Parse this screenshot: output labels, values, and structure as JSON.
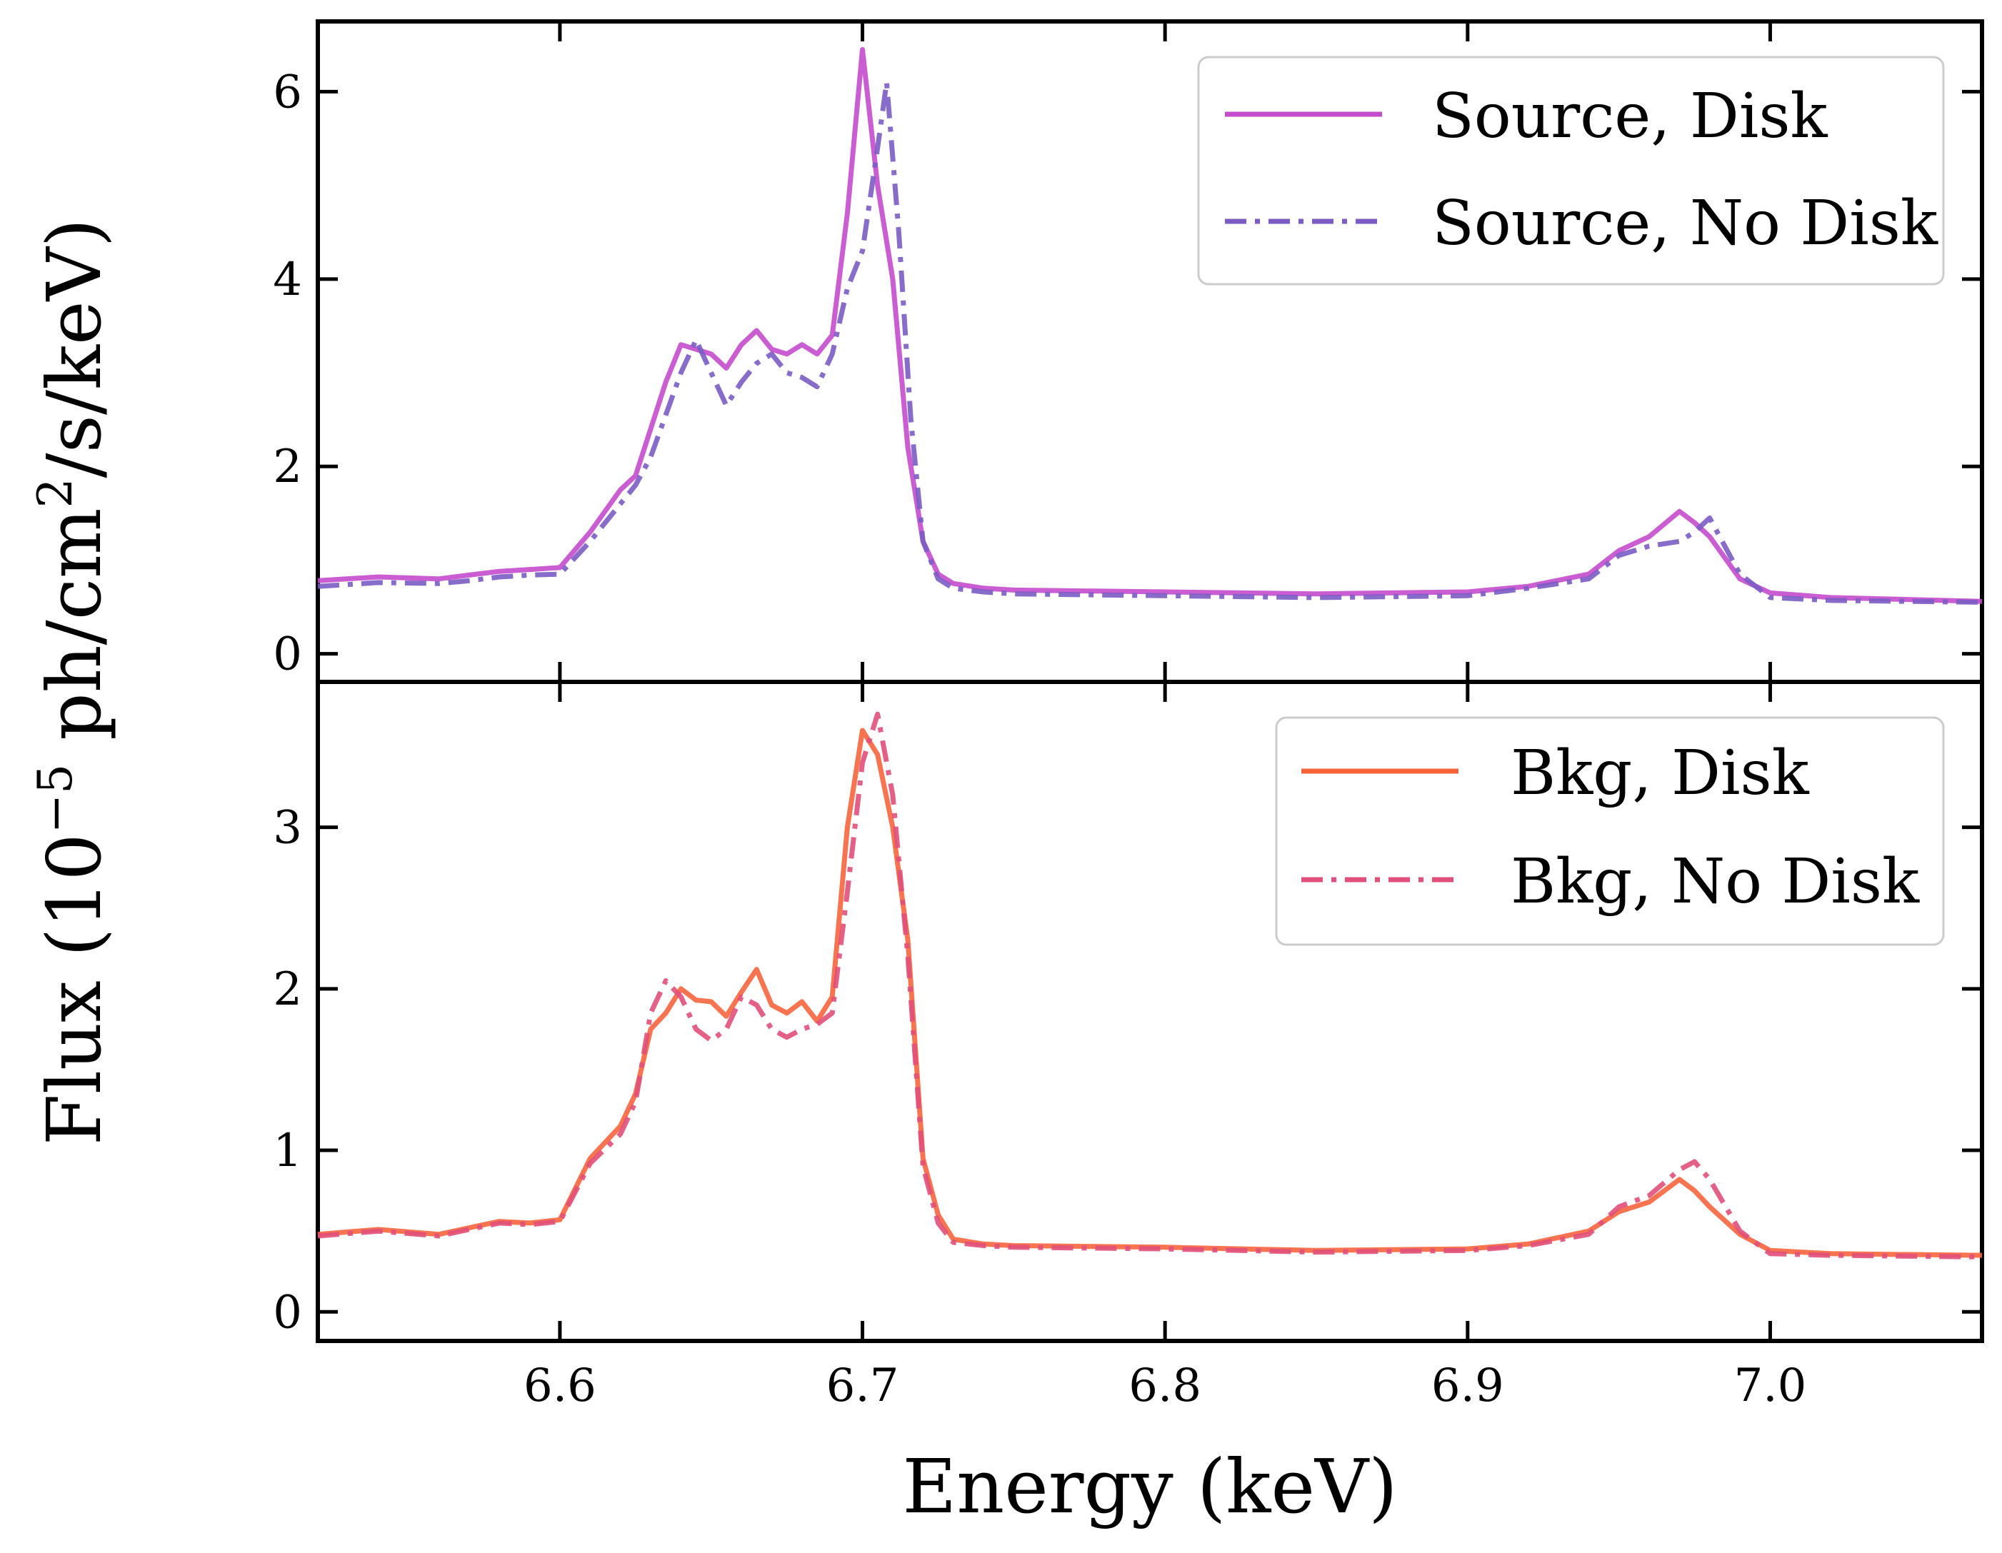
{
  "chart_data": {
    "type": "line",
    "xlabel": "Energy (keV)",
    "ylabel_parts": {
      "prefix": "Flux (10",
      "exponent": "−5",
      "middle": " ph/cm",
      "exponent2": "2",
      "suffix": "/s/keV)"
    },
    "xlim": [
      6.52,
      7.07
    ],
    "x_ticks": [
      6.6,
      6.7,
      6.8,
      6.9,
      7.0
    ],
    "x_tick_labels": [
      "6.6",
      "6.7",
      "6.8",
      "6.9",
      "7.0"
    ],
    "panels": [
      {
        "name": "top",
        "ylim": [
          -0.3,
          6.75
        ],
        "y_ticks": [
          0,
          2,
          4,
          6
        ],
        "y_tick_labels": [
          "0",
          "2",
          "4",
          "6"
        ],
        "legend_position": "top-right",
        "series": [
          {
            "name": "Source, Disk",
            "style": "solid",
            "color": "#c44bcc",
            "x": [
              6.52,
              6.54,
              6.56,
              6.57,
              6.58,
              6.59,
              6.6,
              6.61,
              6.62,
              6.625,
              6.63,
              6.635,
              6.64,
              6.645,
              6.65,
              6.655,
              6.66,
              6.665,
              6.67,
              6.675,
              6.68,
              6.685,
              6.69,
              6.695,
              6.7,
              6.705,
              6.71,
              6.715,
              6.72,
              6.725,
              6.73,
              6.74,
              6.75,
              6.8,
              6.85,
              6.9,
              6.92,
              6.94,
              6.95,
              6.96,
              6.97,
              6.975,
              6.98,
              6.99,
              7.0,
              7.02,
              7.07
            ],
            "y": [
              0.78,
              0.82,
              0.8,
              0.84,
              0.88,
              0.9,
              0.92,
              1.3,
              1.75,
              1.9,
              2.4,
              2.9,
              3.3,
              3.25,
              3.2,
              3.05,
              3.3,
              3.45,
              3.25,
              3.2,
              3.3,
              3.2,
              3.4,
              4.7,
              6.45,
              5.0,
              4.0,
              2.2,
              1.2,
              0.85,
              0.75,
              0.7,
              0.68,
              0.66,
              0.64,
              0.66,
              0.72,
              0.85,
              1.1,
              1.25,
              1.52,
              1.4,
              1.25,
              0.8,
              0.65,
              0.6,
              0.56
            ]
          },
          {
            "name": "Source, No Disk",
            "style": "dashdot",
            "color": "#7b5cc4",
            "x": [
              6.52,
              6.54,
              6.56,
              6.57,
              6.58,
              6.59,
              6.6,
              6.61,
              6.62,
              6.625,
              6.63,
              6.635,
              6.64,
              6.645,
              6.65,
              6.655,
              6.66,
              6.665,
              6.67,
              6.675,
              6.68,
              6.685,
              6.69,
              6.695,
              6.7,
              6.705,
              6.708,
              6.712,
              6.716,
              6.72,
              6.725,
              6.73,
              6.74,
              6.75,
              6.8,
              6.85,
              6.9,
              6.92,
              6.94,
              6.95,
              6.96,
              6.97,
              6.975,
              6.98,
              6.99,
              7.0,
              7.02,
              7.07
            ],
            "y": [
              0.72,
              0.76,
              0.75,
              0.78,
              0.82,
              0.84,
              0.85,
              1.2,
              1.6,
              1.8,
              2.1,
              2.55,
              3.0,
              3.35,
              3.0,
              2.65,
              2.9,
              3.1,
              3.2,
              3.0,
              2.95,
              2.85,
              3.2,
              3.9,
              4.3,
              5.4,
              6.1,
              4.5,
              2.5,
              1.2,
              0.8,
              0.7,
              0.66,
              0.64,
              0.62,
              0.6,
              0.62,
              0.7,
              0.8,
              1.05,
              1.15,
              1.2,
              1.3,
              1.45,
              0.85,
              0.6,
              0.57,
              0.55
            ]
          }
        ]
      },
      {
        "name": "bottom",
        "ylim": [
          -0.18,
          3.9
        ],
        "y_ticks": [
          0,
          1,
          2,
          3
        ],
        "y_tick_labels": [
          "0",
          "1",
          "2",
          "3"
        ],
        "legend_position": "top-right",
        "series": [
          {
            "name": "Bkg, Disk",
            "style": "solid",
            "color": "#f7643c",
            "x": [
              6.52,
              6.54,
              6.56,
              6.57,
              6.58,
              6.59,
              6.6,
              6.61,
              6.62,
              6.625,
              6.63,
              6.635,
              6.64,
              6.645,
              6.65,
              6.655,
              6.66,
              6.665,
              6.67,
              6.675,
              6.68,
              6.685,
              6.69,
              6.695,
              6.7,
              6.705,
              6.71,
              6.715,
              6.72,
              6.725,
              6.73,
              6.74,
              6.75,
              6.8,
              6.85,
              6.9,
              6.92,
              6.94,
              6.95,
              6.96,
              6.97,
              6.975,
              6.98,
              6.99,
              7.0,
              7.02,
              7.07
            ],
            "y": [
              0.48,
              0.51,
              0.48,
              0.52,
              0.56,
              0.55,
              0.57,
              0.95,
              1.15,
              1.35,
              1.75,
              1.85,
              2.0,
              1.93,
              1.92,
              1.83,
              1.98,
              2.12,
              1.9,
              1.85,
              1.92,
              1.8,
              1.95,
              3.0,
              3.6,
              3.45,
              3.0,
              2.3,
              0.95,
              0.6,
              0.45,
              0.42,
              0.41,
              0.4,
              0.38,
              0.39,
              0.42,
              0.5,
              0.62,
              0.68,
              0.82,
              0.75,
              0.65,
              0.48,
              0.38,
              0.36,
              0.35
            ]
          },
          {
            "name": "Bkg, No Disk",
            "style": "dashdot",
            "color": "#e0507a",
            "x": [
              6.52,
              6.54,
              6.56,
              6.57,
              6.58,
              6.59,
              6.6,
              6.61,
              6.62,
              6.625,
              6.63,
              6.635,
              6.64,
              6.645,
              6.65,
              6.655,
              6.66,
              6.665,
              6.67,
              6.675,
              6.68,
              6.685,
              6.69,
              6.695,
              6.7,
              6.705,
              6.71,
              6.715,
              6.72,
              6.725,
              6.73,
              6.74,
              6.75,
              6.8,
              6.85,
              6.9,
              6.92,
              6.94,
              6.95,
              6.96,
              6.97,
              6.975,
              6.98,
              6.99,
              7.0,
              7.02,
              7.07
            ],
            "y": [
              0.47,
              0.5,
              0.47,
              0.51,
              0.55,
              0.54,
              0.56,
              0.92,
              1.1,
              1.3,
              1.85,
              2.05,
              1.95,
              1.75,
              1.68,
              1.75,
              1.95,
              1.9,
              1.75,
              1.7,
              1.75,
              1.78,
              1.85,
              2.6,
              3.4,
              3.7,
              3.2,
              2.2,
              0.9,
              0.55,
              0.43,
              0.41,
              0.4,
              0.39,
              0.37,
              0.38,
              0.41,
              0.48,
              0.65,
              0.72,
              0.88,
              0.93,
              0.82,
              0.5,
              0.36,
              0.35,
              0.34
            ]
          }
        ]
      }
    ]
  }
}
